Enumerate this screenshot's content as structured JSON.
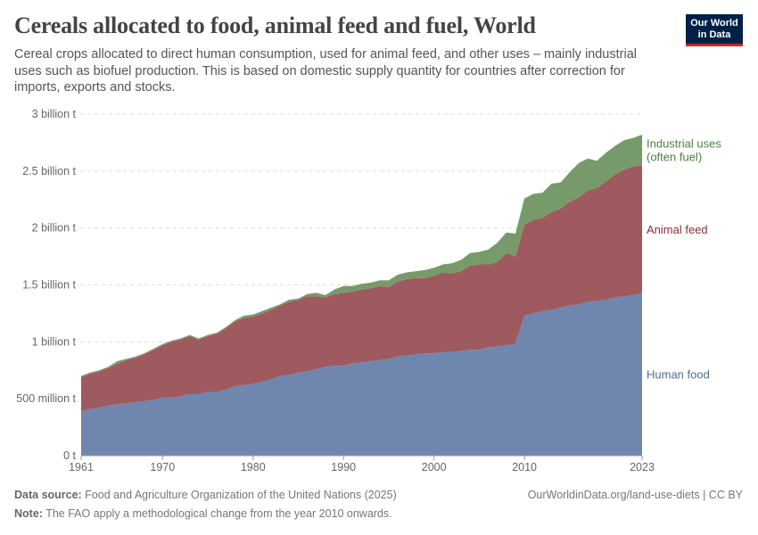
{
  "header": {
    "title": "Cereals allocated to food, animal feed and fuel, World",
    "subtitle": "Cereal crops allocated to direct human consumption, used for animal feed, and other uses – mainly industrial uses such as biofuel production. This is based on domestic supply quantity for countries after correction for imports, exports and stocks.",
    "logo_text": "Our World in Data"
  },
  "footer": {
    "source_label": "Data source:",
    "source_text": "Food and Agriculture Organization of the United Nations (2025)",
    "url": "OurWorldinData.org/land-use-diets | CC BY",
    "note_label": "Note:",
    "note_text": "The FAO apply a methodological change from the year 2010 onwards."
  },
  "chart_data": {
    "type": "area",
    "stacked": true,
    "title": "Cereals allocated to food, animal feed and fuel, World",
    "xlabel": "",
    "ylabel": "",
    "unit": "billion t",
    "xlim": [
      1961,
      2023
    ],
    "ylim": [
      0,
      3
    ],
    "grid": true,
    "legend_placement": "right (inline labels)",
    "y_ticks": [
      {
        "value": 0,
        "label": "0 t"
      },
      {
        "value": 0.5,
        "label": "500 million t"
      },
      {
        "value": 1,
        "label": "1 billion t"
      },
      {
        "value": 1.5,
        "label": "1.5 billion t"
      },
      {
        "value": 2,
        "label": "2 billion t"
      },
      {
        "value": 2.5,
        "label": "2.5 billion t"
      },
      {
        "value": 3,
        "label": "3 billion t"
      }
    ],
    "x_ticks": [
      "1961",
      "1970",
      "1980",
      "1990",
      "2000",
      "2010",
      "2023"
    ],
    "x_start": 1961,
    "series": [
      {
        "name": "Human food",
        "color": "#6f87ae",
        "label_color": "#4c6a9c",
        "values": [
          0.39,
          0.41,
          0.42,
          0.44,
          0.45,
          0.46,
          0.47,
          0.48,
          0.49,
          0.51,
          0.51,
          0.52,
          0.54,
          0.54,
          0.56,
          0.56,
          0.58,
          0.61,
          0.62,
          0.63,
          0.65,
          0.67,
          0.7,
          0.71,
          0.73,
          0.74,
          0.76,
          0.78,
          0.79,
          0.79,
          0.81,
          0.82,
          0.83,
          0.84,
          0.85,
          0.87,
          0.88,
          0.89,
          0.9,
          0.9,
          0.91,
          0.91,
          0.92,
          0.93,
          0.93,
          0.95,
          0.96,
          0.97,
          0.98,
          1.23,
          1.25,
          1.27,
          1.28,
          1.3,
          1.32,
          1.33,
          1.35,
          1.36,
          1.37,
          1.39,
          1.4,
          1.41,
          1.43
        ]
      },
      {
        "name": "Animal feed",
        "color": "#9e5a5f",
        "label_color": "#883039",
        "values": [
          0.3,
          0.31,
          0.32,
          0.33,
          0.36,
          0.38,
          0.39,
          0.41,
          0.44,
          0.46,
          0.49,
          0.5,
          0.51,
          0.48,
          0.49,
          0.51,
          0.54,
          0.57,
          0.59,
          0.59,
          0.6,
          0.61,
          0.62,
          0.64,
          0.64,
          0.66,
          0.64,
          0.61,
          0.63,
          0.64,
          0.63,
          0.64,
          0.64,
          0.65,
          0.63,
          0.66,
          0.67,
          0.67,
          0.66,
          0.68,
          0.7,
          0.69,
          0.7,
          0.74,
          0.75,
          0.73,
          0.74,
          0.81,
          0.77,
          0.8,
          0.82,
          0.82,
          0.86,
          0.87,
          0.91,
          0.94,
          0.98,
          0.99,
          1.04,
          1.08,
          1.11,
          1.13,
          1.12
        ]
      },
      {
        "name": "Industrial uses (often fuel)",
        "color": "#779a6a",
        "label_color": "#4c7f3f",
        "values": [
          0.01,
          0.01,
          0.01,
          0.01,
          0.02,
          0.01,
          0.01,
          0.01,
          0.01,
          0.01,
          0.01,
          0.01,
          0.01,
          0.01,
          0.01,
          0.01,
          0.01,
          0.01,
          0.02,
          0.02,
          0.02,
          0.02,
          0.01,
          0.02,
          0.01,
          0.02,
          0.03,
          0.02,
          0.04,
          0.06,
          0.05,
          0.05,
          0.05,
          0.05,
          0.06,
          0.06,
          0.06,
          0.06,
          0.07,
          0.07,
          0.07,
          0.09,
          0.1,
          0.11,
          0.11,
          0.13,
          0.17,
          0.18,
          0.2,
          0.23,
          0.23,
          0.22,
          0.25,
          0.23,
          0.26,
          0.3,
          0.28,
          0.24,
          0.25,
          0.25,
          0.26,
          0.25,
          0.27
        ]
      }
    ],
    "legend_lines": [
      [
        "Human food"
      ],
      [
        "Animal feed"
      ],
      [
        "Industrial uses",
        "(often fuel)"
      ]
    ]
  }
}
